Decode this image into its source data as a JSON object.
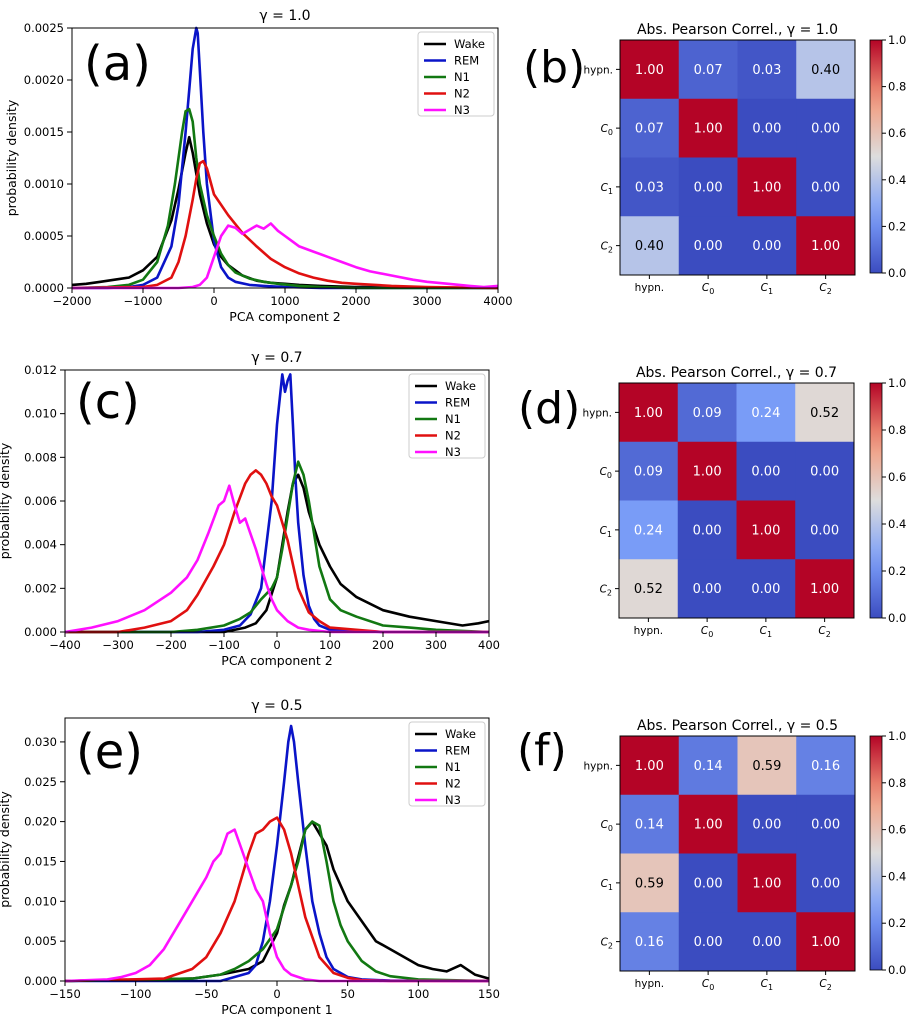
{
  "colors": {
    "Wake": "#000000",
    "REM": "#0a14c8",
    "N1": "#127812",
    "N2": "#e01010",
    "N3": "#ff10ff"
  },
  "colormap": {
    "name": "coolwarm",
    "range": [
      0,
      1
    ]
  },
  "chart_data": [
    {
      "panel": "(a)",
      "type": "line",
      "title": "γ = 1.0",
      "xlabel": "PCA component 2",
      "ylabel": "probability density",
      "xlim": [
        -2000,
        4000
      ],
      "ylim": [
        0,
        0.0025
      ],
      "xticks": [
        "−2000",
        "−1000",
        "0",
        "1000",
        "2000",
        "3000",
        "4000"
      ],
      "yticks": [
        "0.0000",
        "0.0005",
        "0.0010",
        "0.0015",
        "0.0020",
        "0.0025"
      ],
      "legend": [
        "Wake",
        "REM",
        "N1",
        "N2",
        "N3"
      ],
      "legend_position": "top-right",
      "series": [
        {
          "name": "Wake",
          "x": [
            -2000,
            -1800,
            -1600,
            -1400,
            -1200,
            -1000,
            -800,
            -600,
            -500,
            -400,
            -350,
            -300,
            -250,
            -200,
            -100,
            0,
            100,
            200,
            400,
            600,
            800,
            1000,
            1200,
            1500,
            2000,
            2500,
            3000,
            4000
          ],
          "y": [
            3e-05,
            4e-05,
            6e-05,
            8e-05,
            0.0001,
            0.00017,
            0.0003,
            0.00065,
            0.00095,
            0.0013,
            0.00145,
            0.0013,
            0.0011,
            0.0009,
            0.00062,
            0.00042,
            0.0003,
            0.00022,
            0.00012,
            7e-05,
            5e-05,
            4e-05,
            3e-05,
            2e-05,
            1e-05,
            1e-05,
            5e-06,
            0
          ]
        },
        {
          "name": "REM",
          "x": [
            -2000,
            -1500,
            -1200,
            -1000,
            -800,
            -600,
            -500,
            -400,
            -350,
            -300,
            -250,
            -230,
            -200,
            -150,
            -100,
            0,
            100,
            200,
            300,
            500,
            700,
            1000,
            1500,
            2000,
            3000,
            4000
          ],
          "y": [
            0,
            0,
            1e-05,
            3e-05,
            0.0001,
            0.0004,
            0.0008,
            0.0015,
            0.0019,
            0.0023,
            0.0025,
            0.00245,
            0.0021,
            0.0015,
            0.001,
            0.00045,
            0.0002,
            0.0001,
            6e-05,
            3e-05,
            2e-05,
            1e-05,
            0,
            0,
            0,
            0
          ]
        },
        {
          "name": "N1",
          "x": [
            -2000,
            -1500,
            -1200,
            -1000,
            -800,
            -650,
            -550,
            -450,
            -400,
            -350,
            -300,
            -250,
            -200,
            -100,
            0,
            100,
            200,
            300,
            500,
            700,
            900,
            1200,
            1500,
            2000,
            3000,
            4000
          ],
          "y": [
            0,
            1e-05,
            3e-05,
            8e-05,
            0.00025,
            0.0006,
            0.001,
            0.0015,
            0.0017,
            0.00172,
            0.0016,
            0.00125,
            0.001,
            0.0007,
            0.0005,
            0.00033,
            0.00022,
            0.00015,
            9e-05,
            6e-05,
            4e-05,
            2e-05,
            1e-05,
            0,
            0,
            0
          ]
        },
        {
          "name": "N2",
          "x": [
            -2000,
            -1000,
            -800,
            -600,
            -500,
            -400,
            -300,
            -250,
            -200,
            -150,
            -100,
            0,
            200,
            400,
            600,
            800,
            1000,
            1200,
            1400,
            1600,
            1800,
            2000,
            2500,
            3000,
            4000
          ],
          "y": [
            0,
            1e-05,
            3e-05,
            0.0001,
            0.00025,
            0.0005,
            0.00085,
            0.00105,
            0.0012,
            0.00122,
            0.00115,
            0.0009,
            0.0007,
            0.00053,
            0.0004,
            0.00028,
            0.0002,
            0.00014,
            0.0001,
            7e-05,
            5e-05,
            4e-05,
            2e-05,
            1e-05,
            0
          ]
        },
        {
          "name": "N3",
          "x": [
            -2000,
            -500,
            -300,
            -200,
            -100,
            0,
            100,
            200,
            300,
            400,
            500,
            600,
            700,
            800,
            900,
            1000,
            1100,
            1200,
            1400,
            1600,
            1800,
            2000,
            2200,
            2500,
            2800,
            3000,
            3300,
            3600,
            3800,
            4000
          ],
          "y": [
            0,
            0,
            1e-05,
            3e-05,
            0.0001,
            0.0003,
            0.0005,
            0.0006,
            0.00058,
            0.00052,
            0.00056,
            0.0006,
            0.00057,
            0.00062,
            0.00055,
            0.0005,
            0.00045,
            0.0004,
            0.00035,
            0.0003,
            0.00025,
            0.0002,
            0.00016,
            0.00012,
            8e-05,
            6e-05,
            4e-05,
            2e-05,
            1e-05,
            2e-05
          ]
        }
      ]
    },
    {
      "panel": "(b)",
      "type": "heatmap",
      "title": "Abs. Pearson Correl., γ = 1.0",
      "row_labels": [
        "hypn.",
        "C0",
        "C1",
        "C2"
      ],
      "col_labels": [
        "hypn.",
        "C0",
        "C1",
        "C2"
      ],
      "values": [
        [
          1.0,
          0.07,
          0.03,
          0.4
        ],
        [
          0.07,
          1.0,
          0.0,
          0.0
        ],
        [
          0.03,
          0.0,
          1.0,
          0.0
        ],
        [
          0.4,
          0.0,
          0.0,
          1.0
        ]
      ],
      "colorbar_ticks": [
        "0.0",
        "0.2",
        "0.4",
        "0.6",
        "0.8",
        "1.0"
      ]
    },
    {
      "panel": "(c)",
      "type": "line",
      "title": "γ = 0.7",
      "xlabel": "PCA component 2",
      "ylabel": "probability density",
      "xlim": [
        -400,
        400
      ],
      "ylim": [
        0,
        0.012
      ],
      "xticks": [
        "−400",
        "−300",
        "−200",
        "−100",
        "0",
        "100",
        "200",
        "300",
        "400"
      ],
      "yticks": [
        "0.000",
        "0.002",
        "0.004",
        "0.006",
        "0.008",
        "0.010",
        "0.012"
      ],
      "legend": [
        "Wake",
        "REM",
        "N1",
        "N2",
        "N3"
      ],
      "legend_position": "top-right",
      "series": [
        {
          "name": "Wake",
          "x": [
            -400,
            -200,
            -100,
            -60,
            -40,
            -20,
            0,
            10,
            20,
            30,
            40,
            50,
            60,
            80,
            100,
            120,
            150,
            200,
            250,
            300,
            350,
            380,
            400
          ],
          "y": [
            0,
            0,
            0,
            0.0002,
            0.0004,
            0.001,
            0.0025,
            0.004,
            0.0055,
            0.0068,
            0.0072,
            0.0066,
            0.0055,
            0.004,
            0.003,
            0.0022,
            0.0016,
            0.001,
            0.0007,
            0.0005,
            0.0003,
            0.0004,
            0.0005
          ]
        },
        {
          "name": "REM",
          "x": [
            -400,
            -150,
            -100,
            -70,
            -50,
            -30,
            -10,
            0,
            10,
            15,
            20,
            25,
            30,
            35,
            40,
            50,
            60,
            70,
            80,
            100,
            150,
            200,
            400
          ],
          "y": [
            0,
            0,
            0.0001,
            0.0003,
            0.0008,
            0.002,
            0.006,
            0.0095,
            0.0118,
            0.011,
            0.0115,
            0.0118,
            0.0095,
            0.007,
            0.005,
            0.0026,
            0.0012,
            0.0006,
            0.0003,
            0.0001,
            5e-05,
            0,
            0
          ]
        },
        {
          "name": "N1",
          "x": [
            -400,
            -200,
            -150,
            -100,
            -70,
            -50,
            -30,
            -10,
            0,
            10,
            20,
            30,
            40,
            50,
            60,
            70,
            80,
            100,
            120,
            150,
            200,
            250,
            300,
            400
          ],
          "y": [
            0,
            0,
            0.0001,
            0.0003,
            0.0006,
            0.0009,
            0.0015,
            0.002,
            0.0025,
            0.0038,
            0.0053,
            0.0068,
            0.0078,
            0.0072,
            0.006,
            0.0045,
            0.003,
            0.0015,
            0.001,
            0.0007,
            0.0003,
            0.0002,
            0.0001,
            0
          ]
        },
        {
          "name": "N2",
          "x": [
            -400,
            -300,
            -250,
            -200,
            -170,
            -150,
            -120,
            -100,
            -80,
            -60,
            -50,
            -40,
            -30,
            -20,
            -10,
            0,
            20,
            40,
            60,
            80,
            100,
            150,
            200,
            400
          ],
          "y": [
            0,
            0,
            0.0002,
            0.0005,
            0.001,
            0.0017,
            0.003,
            0.004,
            0.0055,
            0.0068,
            0.0072,
            0.0074,
            0.0072,
            0.0068,
            0.0062,
            0.0058,
            0.0042,
            0.002,
            0.0009,
            0.0005,
            0.0002,
            0.0001,
            0,
            0
          ]
        },
        {
          "name": "N3",
          "x": [
            -400,
            -350,
            -300,
            -250,
            -200,
            -170,
            -150,
            -130,
            -110,
            -100,
            -90,
            -80,
            -70,
            -60,
            -50,
            -40,
            -30,
            -20,
            -10,
            0,
            20,
            40,
            60,
            100,
            200,
            400
          ],
          "y": [
            0,
            0.0002,
            0.0005,
            0.001,
            0.0018,
            0.0025,
            0.0033,
            0.0045,
            0.0058,
            0.006,
            0.0067,
            0.0058,
            0.005,
            0.0052,
            0.0045,
            0.0038,
            0.003,
            0.0022,
            0.0015,
            0.001,
            0.0005,
            0.0002,
            0.0001,
            0,
            0,
            0
          ]
        }
      ]
    },
    {
      "panel": "(d)",
      "type": "heatmap",
      "title": "Abs. Pearson Correl., γ = 0.7",
      "row_labels": [
        "hypn.",
        "C0",
        "C1",
        "C2"
      ],
      "col_labels": [
        "hypn.",
        "C0",
        "C1",
        "C2"
      ],
      "values": [
        [
          1.0,
          0.09,
          0.24,
          0.52
        ],
        [
          0.09,
          1.0,
          0.0,
          0.0
        ],
        [
          0.24,
          0.0,
          1.0,
          0.0
        ],
        [
          0.52,
          0.0,
          0.0,
          1.0
        ]
      ],
      "colorbar_ticks": [
        "0.0",
        "0.2",
        "0.4",
        "0.6",
        "0.8",
        "1.0"
      ]
    },
    {
      "panel": "(e)",
      "type": "line",
      "title": "γ = 0.5",
      "xlabel": "PCA component 1",
      "ylabel": "probability density",
      "xlim": [
        -150,
        150
      ],
      "ylim": [
        0,
        0.033
      ],
      "xticks": [
        "−150",
        "−100",
        "−50",
        "0",
        "50",
        "100",
        "150"
      ],
      "yticks": [
        "0.000",
        "0.005",
        "0.010",
        "0.015",
        "0.020",
        "0.025",
        "0.030"
      ],
      "legend": [
        "Wake",
        "REM",
        "N1",
        "N2",
        "N3"
      ],
      "legend_position": "top-right",
      "series": [
        {
          "name": "Wake",
          "x": [
            -150,
            -60,
            -40,
            -20,
            -10,
            0,
            5,
            10,
            15,
            20,
            25,
            30,
            35,
            40,
            50,
            60,
            70,
            80,
            90,
            100,
            110,
            120,
            130,
            140,
            150
          ],
          "y": [
            0,
            0.0003,
            0.0008,
            0.0015,
            0.0025,
            0.006,
            0.0095,
            0.012,
            0.0155,
            0.019,
            0.02,
            0.0185,
            0.017,
            0.014,
            0.01,
            0.0075,
            0.005,
            0.004,
            0.003,
            0.002,
            0.0015,
            0.0012,
            0.002,
            0.0008,
            0.0003
          ]
        },
        {
          "name": "REM",
          "x": [
            -150,
            -40,
            -30,
            -20,
            -15,
            -10,
            -5,
            0,
            5,
            8,
            10,
            12,
            15,
            20,
            25,
            30,
            35,
            40,
            50,
            60,
            80,
            150
          ],
          "y": [
            0,
            0,
            0.0005,
            0.001,
            0.002,
            0.005,
            0.01,
            0.017,
            0.025,
            0.03,
            0.032,
            0.03,
            0.025,
            0.017,
            0.01,
            0.006,
            0.003,
            0.0015,
            0.0005,
            0.0002,
            5e-05,
            0
          ]
        },
        {
          "name": "N1",
          "x": [
            -150,
            -60,
            -40,
            -30,
            -20,
            -10,
            0,
            10,
            15,
            20,
            25,
            30,
            35,
            40,
            45,
            50,
            60,
            70,
            80,
            100,
            150
          ],
          "y": [
            0,
            0.0003,
            0.0008,
            0.0015,
            0.0025,
            0.004,
            0.0065,
            0.012,
            0.015,
            0.019,
            0.02,
            0.0195,
            0.015,
            0.01,
            0.007,
            0.005,
            0.0025,
            0.0012,
            0.0006,
            0.0002,
            0
          ]
        },
        {
          "name": "N2",
          "x": [
            -150,
            -80,
            -60,
            -50,
            -40,
            -30,
            -25,
            -20,
            -15,
            -10,
            -5,
            0,
            5,
            10,
            15,
            20,
            30,
            40,
            50,
            60,
            80,
            150
          ],
          "y": [
            0,
            0.0003,
            0.0015,
            0.003,
            0.006,
            0.01,
            0.013,
            0.016,
            0.0185,
            0.019,
            0.02,
            0.0205,
            0.019,
            0.016,
            0.012,
            0.008,
            0.003,
            0.001,
            0.0004,
            0.0001,
            0,
            0
          ]
        },
        {
          "name": "N3",
          "x": [
            -150,
            -120,
            -110,
            -100,
            -90,
            -80,
            -70,
            -60,
            -50,
            -45,
            -40,
            -35,
            -30,
            -25,
            -20,
            -15,
            -10,
            -5,
            0,
            5,
            10,
            20,
            30,
            150
          ],
          "y": [
            0,
            0.0002,
            0.0005,
            0.001,
            0.002,
            0.004,
            0.007,
            0.01,
            0.013,
            0.015,
            0.016,
            0.0185,
            0.019,
            0.0165,
            0.014,
            0.0115,
            0.01,
            0.006,
            0.003,
            0.0015,
            0.0008,
            0.0002,
            0,
            0
          ]
        }
      ]
    },
    {
      "panel": "(f)",
      "type": "heatmap",
      "title": "Abs. Pearson Correl., γ = 0.5",
      "row_labels": [
        "hypn.",
        "C0",
        "C1",
        "C2"
      ],
      "col_labels": [
        "hypn.",
        "C0",
        "C1",
        "C2"
      ],
      "values": [
        [
          1.0,
          0.14,
          0.59,
          0.16
        ],
        [
          0.14,
          1.0,
          0.0,
          0.0
        ],
        [
          0.59,
          0.0,
          1.0,
          0.0
        ],
        [
          0.16,
          0.0,
          0.0,
          1.0
        ]
      ],
      "colorbar_ticks": [
        "0.0",
        "0.2",
        "0.4",
        "0.6",
        "0.8",
        "1.0"
      ]
    }
  ]
}
